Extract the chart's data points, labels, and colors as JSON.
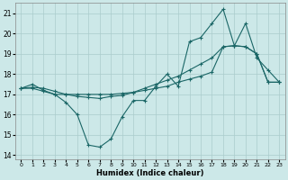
{
  "xlabel": "Humidex (Indice chaleur)",
  "x": [
    0,
    1,
    2,
    3,
    4,
    5,
    6,
    7,
    8,
    9,
    10,
    11,
    12,
    13,
    14,
    15,
    16,
    17,
    18,
    19,
    20,
    21,
    22,
    23
  ],
  "line1": [
    17.3,
    17.5,
    17.2,
    17.0,
    16.6,
    16.0,
    14.5,
    14.4,
    14.8,
    15.9,
    16.7,
    16.7,
    17.4,
    18.0,
    17.4,
    19.6,
    19.8,
    20.5,
    21.2,
    19.4,
    20.5,
    18.8,
    18.2,
    17.6
  ],
  "line2": [
    17.3,
    17.3,
    17.15,
    17.0,
    17.0,
    17.0,
    17.0,
    17.0,
    17.0,
    17.05,
    17.1,
    17.2,
    17.3,
    17.4,
    17.6,
    17.75,
    17.9,
    18.1,
    19.35,
    19.4,
    19.35,
    19.0,
    17.6,
    17.6
  ],
  "line3": [
    17.3,
    17.35,
    17.3,
    17.15,
    17.0,
    16.9,
    16.85,
    16.8,
    16.9,
    16.95,
    17.1,
    17.3,
    17.5,
    17.7,
    17.9,
    18.2,
    18.5,
    18.8,
    19.35,
    19.4,
    19.35,
    19.0,
    17.6,
    17.6
  ],
  "bg_color": "#cce8e8",
  "grid_color": "#aacccc",
  "line_color": "#1a6666",
  "ylim": [
    13.8,
    21.5
  ],
  "yticks": [
    14,
    15,
    16,
    17,
    18,
    19,
    20,
    21
  ],
  "xticks": [
    0,
    1,
    2,
    3,
    4,
    5,
    6,
    7,
    8,
    9,
    10,
    11,
    12,
    13,
    14,
    15,
    16,
    17,
    18,
    19,
    20,
    21,
    22,
    23
  ],
  "marker": "+"
}
